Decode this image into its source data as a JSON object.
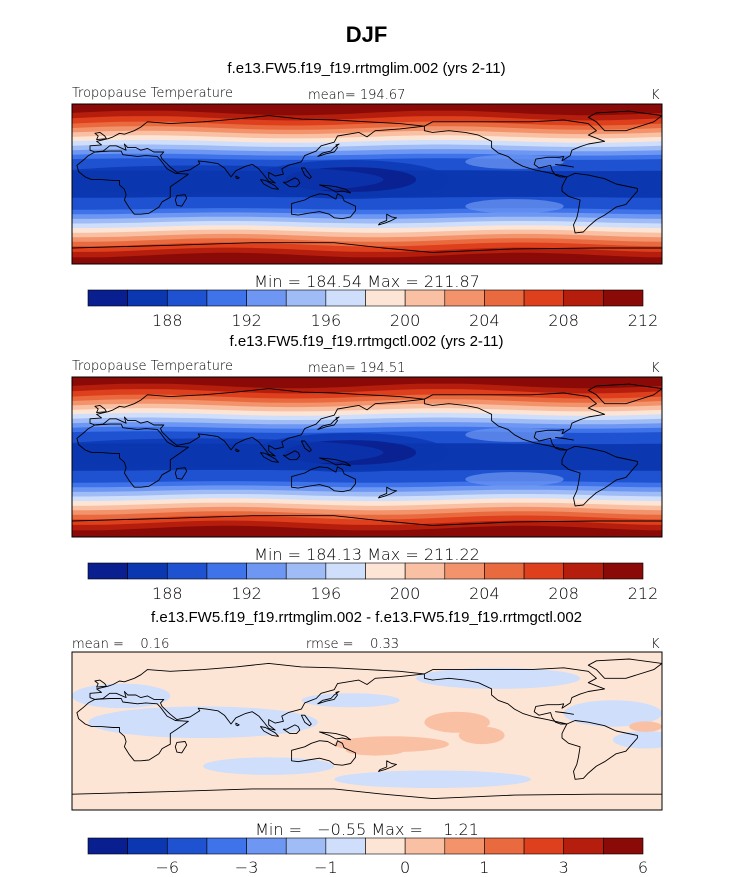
{
  "figure": {
    "season": "DJF"
  },
  "colors": {
    "scale": [
      "#0a1f8f",
      "#0b37b0",
      "#1f52d1",
      "#3f73ea",
      "#6d97f2",
      "#9fbcf6",
      "#cfdefb",
      "#fde5d6",
      "#f9c0a4",
      "#f3936c",
      "#ea6a3f",
      "#de3f1d",
      "#b51d0c",
      "#8a0a07"
    ],
    "coast": "#000000"
  },
  "chart_data": [
    {
      "type": "heatmap",
      "title": "f.e13.FW5.f19_f19.rrtmglim.002 (yrs 2-11)",
      "field_label": "Tropopause Temperature",
      "stat_text": "mean= 194.67",
      "units": "K",
      "min_max_text": "Min = 184.54 Max = 211.87",
      "mean": 194.67,
      "min": 184.54,
      "max": 211.87,
      "colorbar_ticks": [
        "188",
        "192",
        "196",
        "200",
        "204",
        "208",
        "212"
      ],
      "levels": [
        186,
        188,
        190,
        192,
        194,
        196,
        198,
        200,
        202,
        204,
        206,
        208,
        210,
        212
      ]
    },
    {
      "type": "heatmap",
      "title": "f.e13.FW5.f19_f19.rrtmgctl.002 (yrs 2-11)",
      "field_label": "Tropopause Temperature",
      "stat_text": "mean= 194.51",
      "units": "K",
      "min_max_text": "Min = 184.13 Max = 211.22",
      "mean": 194.51,
      "min": 184.13,
      "max": 211.22,
      "colorbar_ticks": [
        "188",
        "192",
        "196",
        "200",
        "204",
        "208",
        "212"
      ],
      "levels": [
        186,
        188,
        190,
        192,
        194,
        196,
        198,
        200,
        202,
        204,
        206,
        208,
        210,
        212
      ]
    },
    {
      "type": "heatmap",
      "title": "f.e13.FW5.f19_f19.rrtmglim.002 - f.e13.FW5.f19_f19.rrtmgctl.002",
      "mean_text": "mean =    0.16",
      "rmse_text": "rmse =    0.33",
      "units": "K",
      "min_max_text": "Min =   −0.55 Max =    1.21",
      "mean": 0.16,
      "rmse": 0.33,
      "min": -0.55,
      "max": 1.21,
      "colorbar_ticks": [
        "−6",
        "−3",
        "−1",
        "0",
        "1",
        "3",
        "6"
      ],
      "levels": [
        -8,
        -6,
        -4,
        -3,
        -2,
        -1,
        -0.5,
        0,
        0.5,
        1,
        2,
        3,
        4,
        6
      ]
    }
  ]
}
